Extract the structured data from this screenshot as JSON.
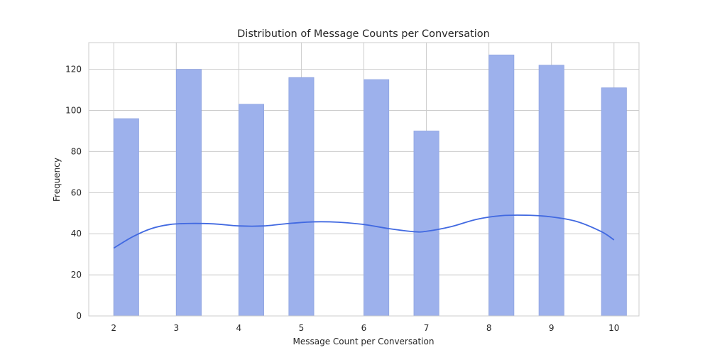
{
  "chart_data": {
    "type": "bar",
    "title": "Distribution of Message Counts per Conversation",
    "xlabel": "Message Count per Conversation",
    "ylabel": "Frequency",
    "xlim": [
      1.6,
      10.4
    ],
    "ylim": [
      0,
      133
    ],
    "x_ticks": [
      2,
      3,
      4,
      5,
      6,
      7,
      8,
      9,
      10
    ],
    "y_ticks": [
      0,
      20,
      40,
      60,
      80,
      100,
      120
    ],
    "grid": true,
    "bar_width": 0.4,
    "bars": [
      {
        "x": 2.2,
        "value": 96
      },
      {
        "x": 3.2,
        "value": 120
      },
      {
        "x": 4.2,
        "value": 103
      },
      {
        "x": 5.0,
        "value": 116
      },
      {
        "x": 6.2,
        "value": 115
      },
      {
        "x": 7.0,
        "value": 90
      },
      {
        "x": 8.2,
        "value": 127
      },
      {
        "x": 9.0,
        "value": 122
      },
      {
        "x": 10.0,
        "value": 111
      }
    ],
    "kde_line": {
      "x": [
        2.0,
        2.3,
        2.6,
        2.9,
        3.2,
        3.6,
        4.0,
        4.4,
        4.8,
        5.2,
        5.6,
        6.0,
        6.4,
        6.8,
        7.0,
        7.4,
        7.8,
        8.2,
        8.6,
        9.0,
        9.4,
        9.8,
        10.0
      ],
      "y": [
        33,
        38.5,
        42.5,
        44.5,
        45,
        44.8,
        43.8,
        43.8,
        45,
        45.8,
        45.6,
        44.5,
        42.5,
        41,
        41.2,
        43.5,
        47,
        48.8,
        49,
        48.2,
        46,
        41,
        37
      ]
    },
    "colors": {
      "bar_fill": "#9db1ec",
      "bar_edge": "#8ea3e0",
      "kde_line": "#4169e1",
      "grid": "#cccccc",
      "axes_edge": "#cccccc",
      "text": "#262626"
    }
  }
}
